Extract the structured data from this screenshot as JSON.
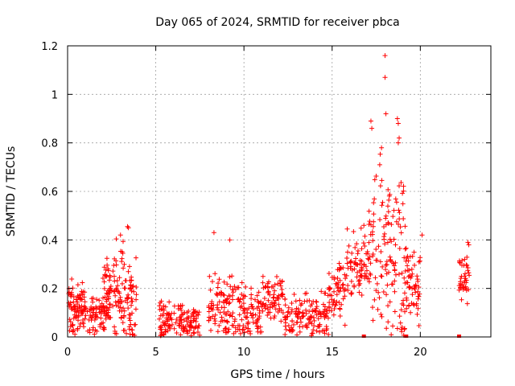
{
  "chart_data": {
    "type": "scatter",
    "title": "Day 065 of 2024, SRMTID for receiver pbca",
    "xlabel": "GPS time / hours",
    "ylabel": "SRMTID / TECUs",
    "xlim": [
      0,
      24
    ],
    "ylim": [
      0,
      1.2
    ],
    "xticks": [
      0,
      5,
      10,
      15,
      20
    ],
    "yticks": [
      0,
      0.2,
      0.4,
      0.6,
      0.8,
      1,
      1.2
    ],
    "grid": true,
    "marker": "plus",
    "color": "#ff0000",
    "series": [
      {
        "name": "pbca",
        "clusters": [
          {
            "x": [
              0.0,
              1.0
            ],
            "base": 0.11,
            "spread": 0.1,
            "n": 90
          },
          {
            "x": [
              1.0,
              2.4
            ],
            "base": 0.09,
            "spread": 0.06,
            "n": 80
          },
          {
            "x": [
              2.0,
              2.6
            ],
            "base": 0.2,
            "spread": 0.1,
            "n": 40
          },
          {
            "x": [
              2.6,
              3.2
            ],
            "base": 0.18,
            "spread": 0.18,
            "n": 50
          },
          {
            "x": [
              3.2,
              3.9
            ],
            "base": 0.15,
            "spread": 0.15,
            "n": 55
          },
          {
            "x": [
              5.2,
              7.5
            ],
            "base": 0.06,
            "spread": 0.07,
            "n": 140
          },
          {
            "x": [
              8.0,
              9.8
            ],
            "base": 0.12,
            "spread": 0.12,
            "n": 110
          },
          {
            "x": [
              9.8,
              11.0
            ],
            "base": 0.1,
            "spread": 0.1,
            "n": 70
          },
          {
            "x": [
              11.0,
              12.2
            ],
            "base": 0.16,
            "spread": 0.08,
            "n": 70
          },
          {
            "x": [
              12.2,
              14.8
            ],
            "base": 0.09,
            "spread": 0.08,
            "n": 140
          },
          {
            "x": [
              14.8,
              15.8
            ],
            "base": 0.18,
            "spread": 0.1,
            "n": 60
          },
          {
            "x": [
              15.8,
              17.0
            ],
            "base": 0.3,
            "spread": 0.12,
            "n": 70
          },
          {
            "x": [
              17.0,
              18.0
            ],
            "base": 0.4,
            "spread": 0.3,
            "n": 60
          },
          {
            "x": [
              18.0,
              19.2
            ],
            "base": 0.3,
            "spread": 0.35,
            "n": 90
          },
          {
            "x": [
              19.2,
              20.0
            ],
            "base": 0.2,
            "spread": 0.12,
            "n": 55
          },
          {
            "x": [
              22.2,
              22.8
            ],
            "base": 0.24,
            "spread": 0.1,
            "n": 40
          }
        ],
        "highlights": [
          [
            3.4,
            0.455
          ],
          [
            3.45,
            0.45
          ],
          [
            8.3,
            0.43
          ],
          [
            9.2,
            0.4
          ],
          [
            17.2,
            0.89
          ],
          [
            17.25,
            0.86
          ],
          [
            18.0,
            1.16
          ],
          [
            18.0,
            1.07
          ],
          [
            18.05,
            0.92
          ],
          [
            18.7,
            0.9
          ],
          [
            18.75,
            0.88
          ],
          [
            18.8,
            0.82
          ],
          [
            18.75,
            0.8
          ],
          [
            17.8,
            0.78
          ],
          [
            17.7,
            0.71
          ],
          [
            20.1,
            0.42
          ],
          [
            22.7,
            0.39
          ],
          [
            22.75,
            0.38
          ],
          [
            3.0,
            0.42
          ],
          [
            16.8,
            0.46
          ]
        ],
        "zero_markers": [
          16.8,
          19.2,
          22.2
        ]
      }
    ]
  }
}
